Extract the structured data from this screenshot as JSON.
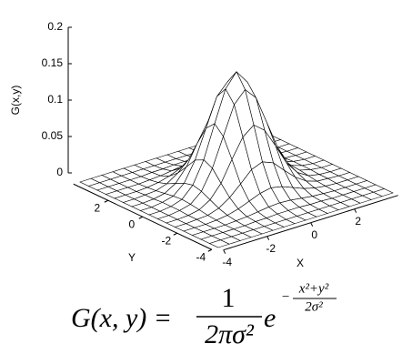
{
  "chart_data": {
    "type": "surface",
    "zlabel": "G(x,y)",
    "xlabel": "X",
    "ylabel": "Y",
    "x": [
      -4,
      -3.5,
      -3,
      -2.5,
      -2,
      -1.5,
      -1,
      -0.5,
      0,
      0.5,
      1,
      1.5,
      2,
      2.5,
      3,
      3.5,
      4
    ],
    "y": [
      -4,
      -3.5,
      -3,
      -2.5,
      -2,
      -1.5,
      -1,
      -0.5,
      0,
      0.5,
      1,
      1.5,
      2,
      2.5,
      3,
      3.5,
      4
    ],
    "z": [
      [
        0,
        0,
        0,
        0,
        0,
        0,
        0,
        0,
        0,
        0,
        0,
        0,
        0,
        0,
        0,
        0,
        0
      ],
      [
        0,
        0,
        0,
        0,
        0,
        0,
        0,
        0,
        0,
        0,
        0,
        0,
        0,
        0,
        0,
        0,
        0
      ],
      [
        0,
        0,
        0,
        0,
        0,
        0.001,
        0.001,
        0.002,
        0.002,
        0.002,
        0.001,
        0.001,
        0,
        0,
        0,
        0,
        0
      ],
      [
        0,
        0,
        0,
        0,
        0.001,
        0.002,
        0.004,
        0.006,
        0.007,
        0.006,
        0.004,
        0.002,
        0.001,
        0,
        0,
        0,
        0
      ],
      [
        0,
        0,
        0,
        0.001,
        0.003,
        0.007,
        0.013,
        0.019,
        0.022,
        0.019,
        0.013,
        0.007,
        0.003,
        0.001,
        0,
        0,
        0
      ],
      [
        0,
        0,
        0.001,
        0.002,
        0.007,
        0.017,
        0.031,
        0.046,
        0.052,
        0.046,
        0.031,
        0.017,
        0.007,
        0.002,
        0.001,
        0,
        0
      ],
      [
        0,
        0,
        0.001,
        0.004,
        0.013,
        0.031,
        0.059,
        0.085,
        0.097,
        0.085,
        0.059,
        0.031,
        0.013,
        0.004,
        0.001,
        0,
        0
      ],
      [
        0,
        0,
        0.002,
        0.006,
        0.019,
        0.046,
        0.085,
        0.124,
        0.14,
        0.124,
        0.085,
        0.046,
        0.019,
        0.006,
        0.002,
        0,
        0
      ],
      [
        0,
        0,
        0.002,
        0.007,
        0.022,
        0.052,
        0.097,
        0.14,
        0.159,
        0.14,
        0.097,
        0.052,
        0.022,
        0.007,
        0.002,
        0,
        0
      ],
      [
        0,
        0,
        0.002,
        0.006,
        0.019,
        0.046,
        0.085,
        0.124,
        0.14,
        0.124,
        0.085,
        0.046,
        0.019,
        0.006,
        0.002,
        0,
        0
      ],
      [
        0,
        0,
        0.001,
        0.004,
        0.013,
        0.031,
        0.059,
        0.085,
        0.097,
        0.085,
        0.059,
        0.031,
        0.013,
        0.004,
        0.001,
        0,
        0
      ],
      [
        0,
        0,
        0.001,
        0.002,
        0.007,
        0.017,
        0.031,
        0.046,
        0.052,
        0.046,
        0.031,
        0.017,
        0.007,
        0.002,
        0.001,
        0,
        0
      ],
      [
        0,
        0,
        0,
        0.001,
        0.003,
        0.007,
        0.013,
        0.019,
        0.022,
        0.019,
        0.013,
        0.007,
        0.003,
        0.001,
        0,
        0,
        0
      ],
      [
        0,
        0,
        0,
        0,
        0.001,
        0.002,
        0.004,
        0.006,
        0.007,
        0.006,
        0.004,
        0.002,
        0.001,
        0,
        0,
        0,
        0
      ],
      [
        0,
        0,
        0,
        0,
        0,
        0.001,
        0.001,
        0.002,
        0.002,
        0.002,
        0.001,
        0.001,
        0,
        0,
        0,
        0,
        0
      ],
      [
        0,
        0,
        0,
        0,
        0,
        0,
        0,
        0,
        0,
        0,
        0,
        0,
        0,
        0,
        0,
        0,
        0
      ],
      [
        0,
        0,
        0,
        0,
        0,
        0,
        0,
        0,
        0,
        0,
        0,
        0,
        0,
        0,
        0,
        0,
        0
      ]
    ],
    "xlim": [
      -4,
      4
    ],
    "ylim": [
      -4,
      4
    ],
    "zlim": [
      0,
      0.2
    ],
    "xticks": [
      -4,
      -2,
      0,
      2
    ],
    "yticks": [
      -4,
      -2,
      0,
      2
    ],
    "zticks": [
      0,
      0.05,
      0.1,
      0.15,
      0.2
    ],
    "color": "#ffffff",
    "edge_color": "#000000"
  },
  "formula": {
    "lhs": "G(x, y) =",
    "numerator": "1",
    "denominator": "2πσ²",
    "base": "e",
    "exp_sign": "−",
    "exp_numerator": "x²+y²",
    "exp_denominator": "2σ²"
  }
}
